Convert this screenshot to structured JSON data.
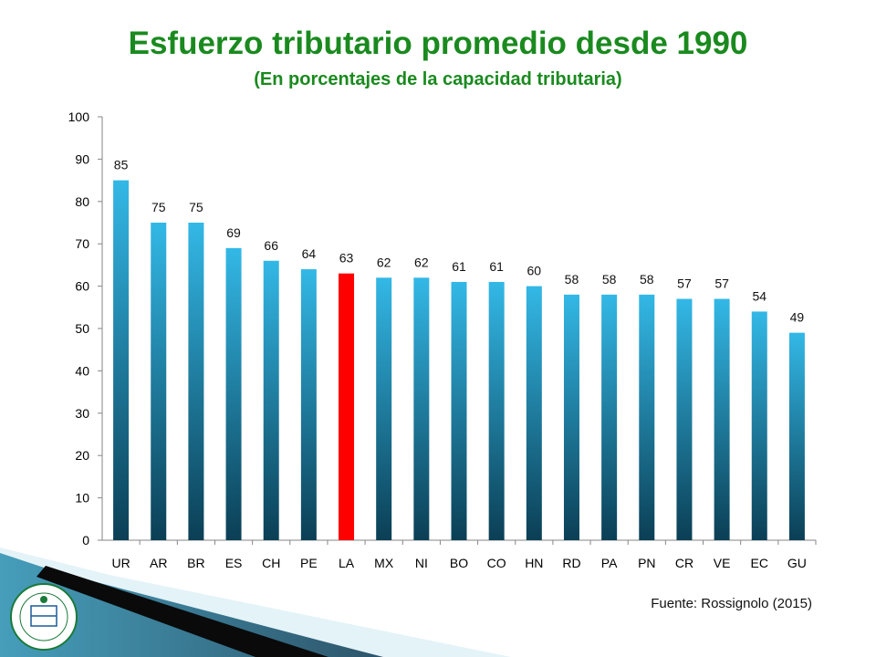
{
  "title": "Esfuerzo tributario promedio desde 1990",
  "subtitle": "(En porcentajes de la capacidad tributaria)",
  "source": "Fuente: Rossignolo (2015)",
  "colors": {
    "title": "#1a8a1f",
    "bar_top": "#33b8e6",
    "bar_bottom": "#0b3f55",
    "highlight": "#ff0000",
    "deco_teal": "#2a8fb0",
    "deco_dark": "#0d3850"
  },
  "chart_data": {
    "type": "bar",
    "categories": [
      "UR",
      "AR",
      "BR",
      "ES",
      "CH",
      "PE",
      "LA",
      "MX",
      "NI",
      "BO",
      "CO",
      "HN",
      "RD",
      "PA",
      "PN",
      "CR",
      "VE",
      "EC",
      "GU"
    ],
    "values": [
      85,
      75,
      75,
      69,
      66,
      64,
      63,
      62,
      62,
      61,
      61,
      60,
      58,
      58,
      58,
      57,
      57,
      54,
      49
    ],
    "value_labels": [
      "85",
      "75",
      "75",
      "69",
      "66",
      "64",
      "63",
      "62",
      "62",
      "61",
      "61",
      "60",
      "58",
      "58",
      "58",
      "57",
      "57",
      "54",
      "49"
    ],
    "highlight_category": "LA",
    "ylim": [
      0,
      100
    ],
    "yticks": [
      "0",
      "10",
      "20",
      "30",
      "40",
      "50",
      "60",
      "70",
      "80",
      "90",
      "100"
    ],
    "grid": false,
    "legend": "none",
    "xlabel": "",
    "ylabel": ""
  }
}
